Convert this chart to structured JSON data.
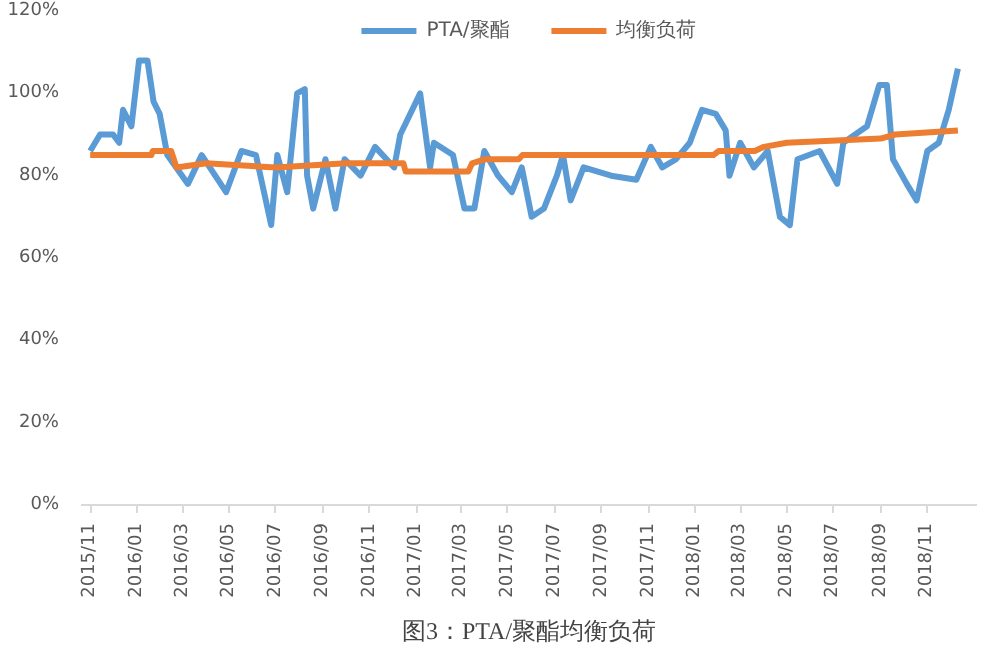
{
  "chart_data": {
    "type": "line",
    "title": "图3：PTA/聚酯均衡负荷",
    "x": [
      "2015-11-01",
      "2015-11-14",
      "2015-12-01",
      "2015-12-09",
      "2015-12-14",
      "2015-12-25",
      "2016-01-04",
      "2016-01-15",
      "2016-01-23",
      "2016-01-31",
      "2016-02-10",
      "2016-03-08",
      "2016-03-26",
      "2016-04-27",
      "2016-05-17",
      "2016-06-05",
      "2016-06-25",
      "2016-07-03",
      "2016-07-16",
      "2016-07-29",
      "2016-08-08",
      "2016-08-11",
      "2016-08-19",
      "2016-09-04",
      "2016-09-17",
      "2016-09-29",
      "2016-10-20",
      "2016-11-08",
      "2016-12-03",
      "2016-12-11",
      "2017-01-06",
      "2017-01-19",
      "2017-01-24",
      "2017-02-18",
      "2017-03-05",
      "2017-03-18",
      "2017-03-31",
      "2017-04-18",
      "2017-05-06",
      "2017-05-19",
      "2017-06-01",
      "2017-06-17",
      "2017-07-04",
      "2017-07-12",
      "2017-07-22",
      "2017-08-08",
      "2017-09-13",
      "2017-10-16",
      "2017-11-04",
      "2017-11-19",
      "2017-12-07",
      "2017-12-25",
      "2018-01-10",
      "2018-01-28",
      "2018-02-10",
      "2018-02-15",
      "2018-03-01",
      "2018-03-19",
      "2018-04-06",
      "2018-04-22",
      "2018-05-05",
      "2018-05-15",
      "2018-06-13",
      "2018-07-06",
      "2018-07-14",
      "2018-08-14",
      "2018-08-30",
      "2018-09-09",
      "2018-09-17",
      "2018-10-05",
      "2018-10-18",
      "2018-11-01",
      "2018-11-16",
      "2018-11-29",
      "2018-12-11"
    ],
    "series": [
      {
        "name": "PTA/聚酯",
        "color": "#5b9bd5",
        "values": [
          86,
          90,
          90,
          88,
          96,
          92,
          108,
          108,
          98,
          95,
          85,
          78,
          85,
          76,
          86,
          85,
          68,
          85,
          76,
          100,
          101,
          80,
          72,
          84,
          72,
          84,
          80,
          87,
          82,
          90,
          100,
          82,
          88,
          85,
          72,
          72,
          86,
          80,
          76,
          82,
          70,
          72,
          80,
          85,
          74,
          82,
          80,
          79,
          87,
          82,
          84,
          88,
          96,
          95,
          91,
          80,
          88,
          82,
          86,
          70,
          68,
          84,
          86,
          78,
          88,
          92,
          102,
          102,
          84,
          78,
          74,
          86,
          88,
          96,
          106
        ]
      },
      {
        "name": "均衡负荷",
        "color": "#ed7d31",
        "x": [
          "2015-11-01",
          "2016-01-20",
          "2016-01-22",
          "2016-02-15",
          "2016-02-22",
          "2016-04-01",
          "2016-07-01",
          "2016-10-01",
          "2016-12-15",
          "2016-12-18",
          "2017-03-10",
          "2017-03-15",
          "2017-04-01",
          "2017-05-15",
          "2017-05-20",
          "2018-01-25",
          "2018-02-01",
          "2018-03-20",
          "2018-04-01",
          "2018-05-01",
          "2018-09-01",
          "2018-09-20",
          "2018-12-11"
        ],
        "values": [
          85,
          85,
          86,
          86,
          82,
          83,
          82,
          83,
          83,
          81,
          81,
          83,
          84,
          84,
          85,
          85,
          86,
          86,
          87,
          88,
          89,
          90,
          91
        ]
      }
    ],
    "xlim": [
      "2015-10-20",
      "2019-01-05"
    ],
    "xticks": [
      {
        "value": "2015-11",
        "label": "2015/11"
      },
      {
        "value": "2016-01",
        "label": "2016/01"
      },
      {
        "value": "2016-03",
        "label": "2016/03"
      },
      {
        "value": "2016-05",
        "label": "2016/05"
      },
      {
        "value": "2016-07",
        "label": "2016/07"
      },
      {
        "value": "2016-09",
        "label": "2016/09"
      },
      {
        "value": "2016-11",
        "label": "2016/11"
      },
      {
        "value": "2017-01",
        "label": "2017/01"
      },
      {
        "value": "2017-03",
        "label": "2017/03"
      },
      {
        "value": "2017-05",
        "label": "2017/05"
      },
      {
        "value": "2017-07",
        "label": "2017/07"
      },
      {
        "value": "2017-09",
        "label": "2017/09"
      },
      {
        "value": "2017-11",
        "label": "2017/11"
      },
      {
        "value": "2018-01",
        "label": "2018/01"
      },
      {
        "value": "2018-03",
        "label": "2018/03"
      },
      {
        "value": "2018-05",
        "label": "2018/05"
      },
      {
        "value": "2018-07",
        "label": "2018/07"
      },
      {
        "value": "2018-09",
        "label": "2018/09"
      },
      {
        "value": "2018-11",
        "label": "2018/11"
      }
    ],
    "ylim": [
      0,
      120
    ],
    "yticks": [
      {
        "value": 0,
        "label": "0%"
      },
      {
        "value": 20,
        "label": "20%"
      },
      {
        "value": 40,
        "label": "40%"
      },
      {
        "value": 60,
        "label": "60%"
      },
      {
        "value": 80,
        "label": "80%"
      },
      {
        "value": 100,
        "label": "100%"
      },
      {
        "value": 120,
        "label": "120%"
      }
    ],
    "grid": false,
    "legend": "top",
    "line_style": "solid",
    "marker": "none"
  }
}
